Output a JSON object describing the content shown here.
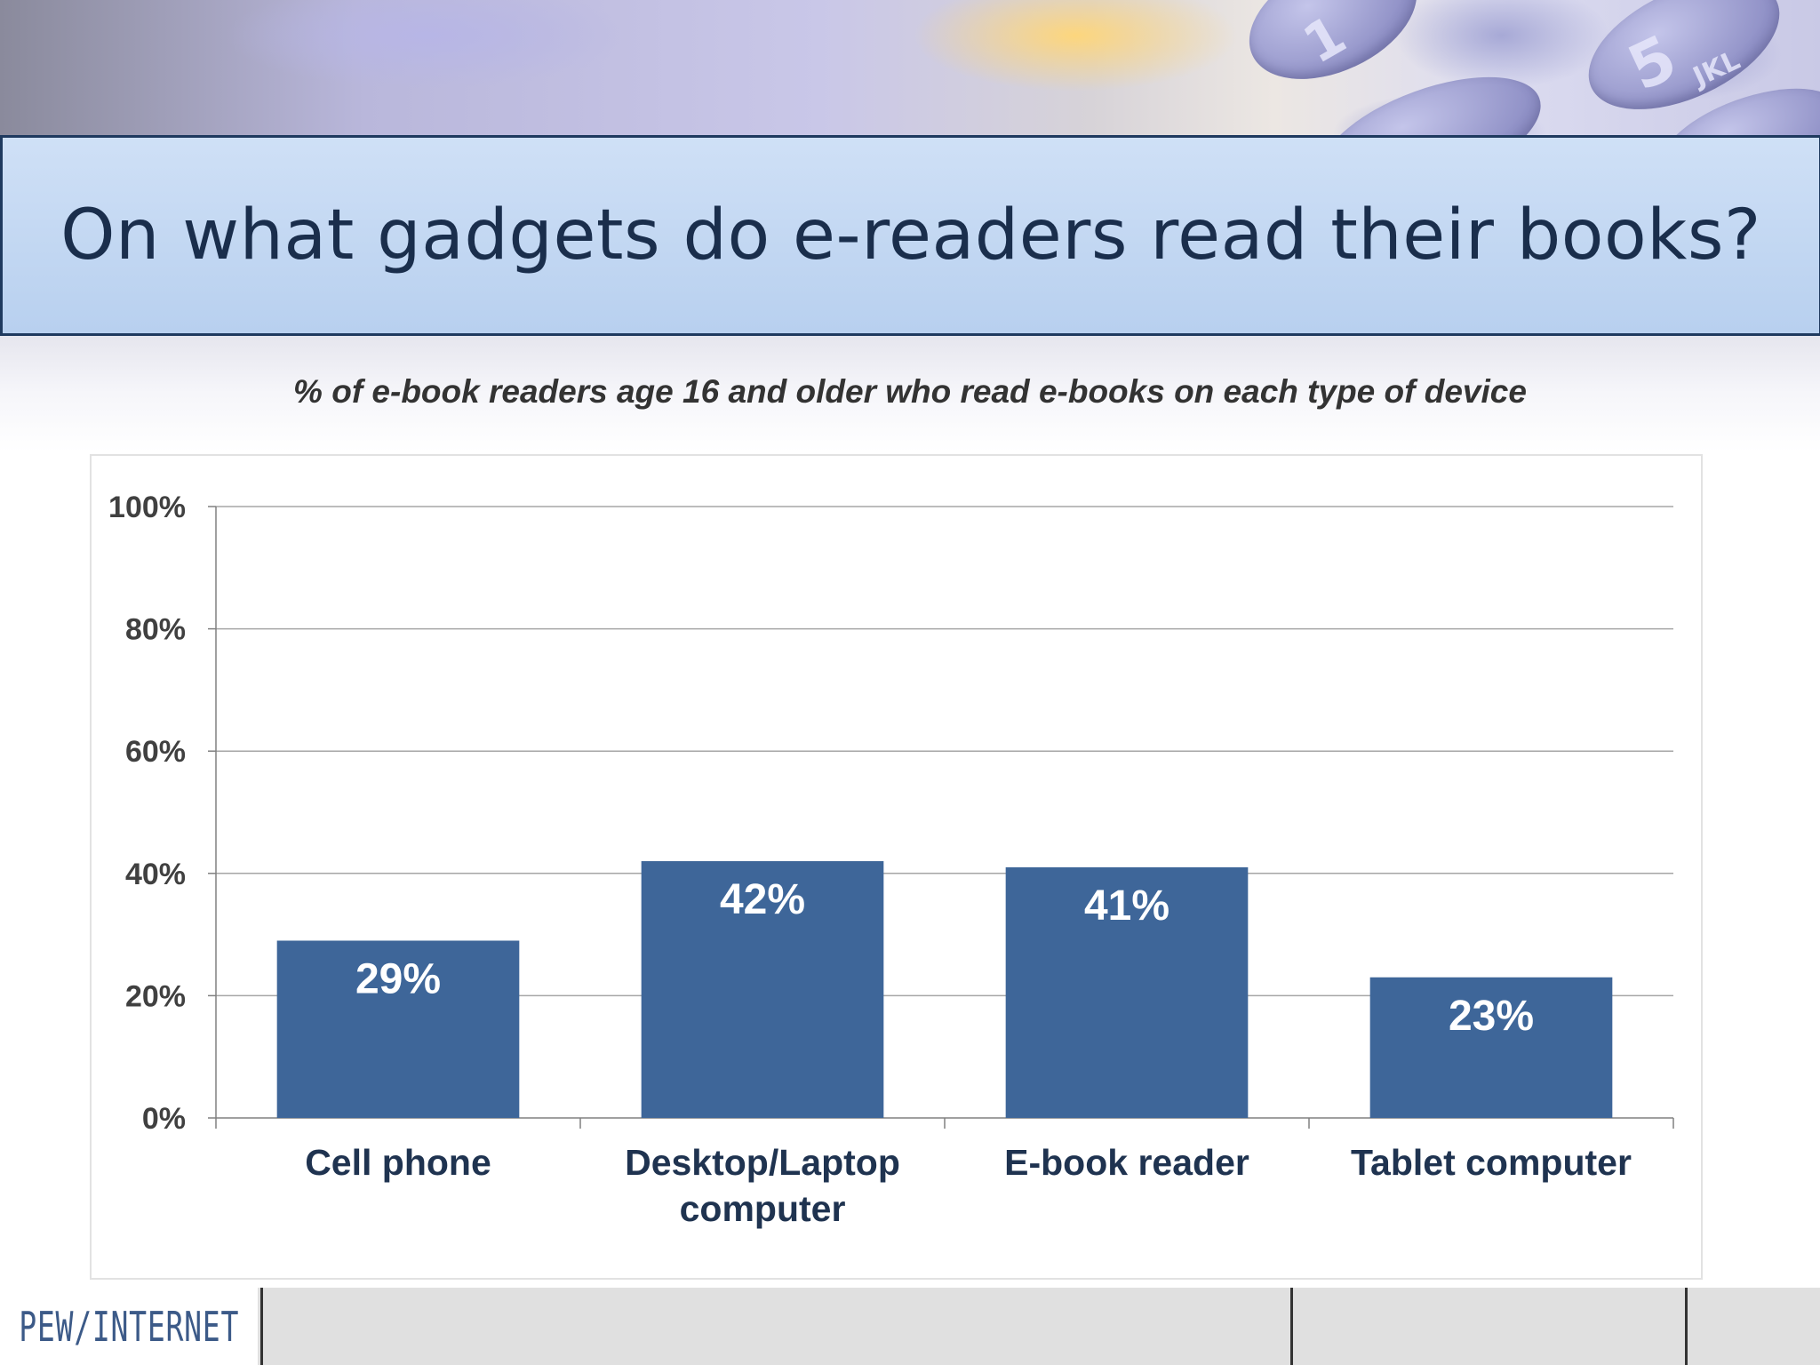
{
  "title": "On what gadgets do e-readers read their books?",
  "subtitle": "% of e-book readers age 16 and older who read e-books on each type of device",
  "footer": {
    "logo_text": "PEW/INTERNET"
  },
  "decor": {
    "key_glyph_1": "1",
    "key_glyph_2": "5",
    "key_glyph_3": "JKL"
  },
  "colors": {
    "bar": "#3e6699",
    "title_bg": "#c7dbf3",
    "title_text": "#1a2e4c",
    "gridline": "#a6a6a6",
    "axis_text": "#404040"
  },
  "chart_data": {
    "type": "bar",
    "title": "",
    "xlabel": "",
    "ylabel": "",
    "categories": [
      "Cell phone",
      "Desktop/Laptop computer",
      "E-book reader",
      "Tablet computer"
    ],
    "category_lines": [
      [
        "Cell phone"
      ],
      [
        "Desktop/Laptop",
        "computer"
      ],
      [
        "E-book reader"
      ],
      [
        "Tablet computer"
      ]
    ],
    "values": [
      29,
      42,
      41,
      23
    ],
    "data_labels": [
      "29%",
      "42%",
      "41%",
      "23%"
    ],
    "ylim": [
      0,
      100
    ],
    "yticks": [
      0,
      20,
      40,
      60,
      80,
      100
    ],
    "ytick_labels": [
      "0%",
      "20%",
      "40%",
      "60%",
      "80%",
      "100%"
    ],
    "grid": true,
    "legend": "none"
  }
}
